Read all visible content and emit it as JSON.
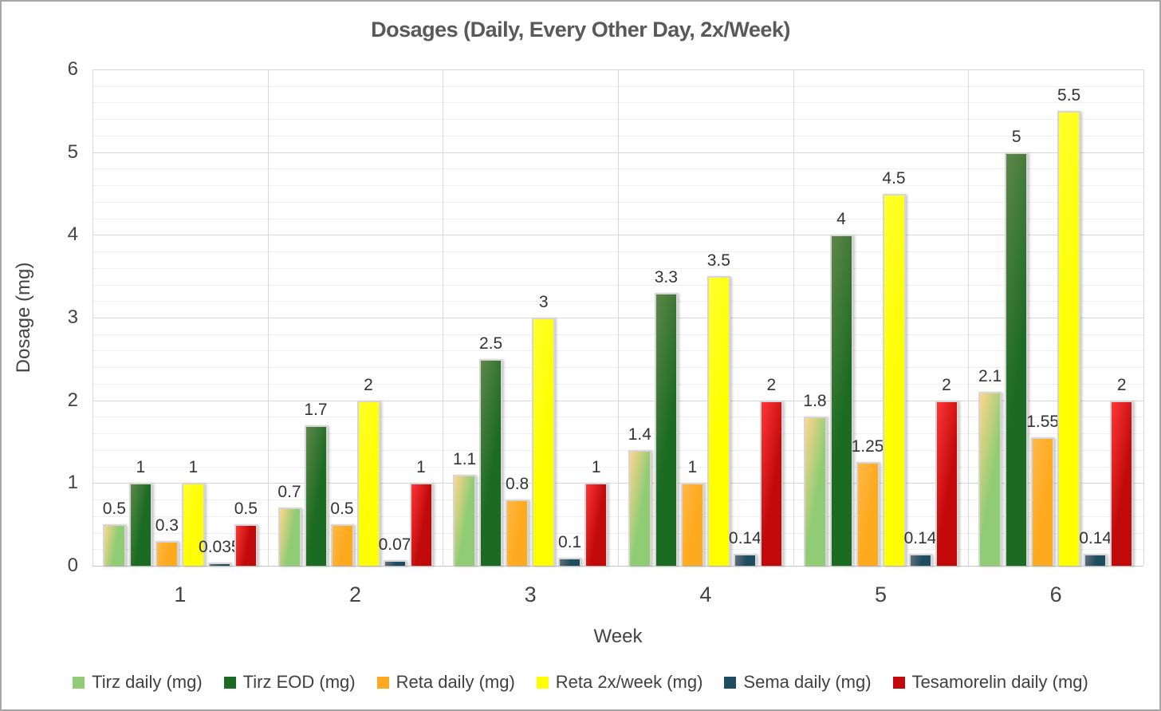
{
  "chart_data": {
    "type": "bar",
    "title": "Dosages (Daily, Every Other Day, 2x/Week)",
    "xlabel": "Week",
    "ylabel": "Dosage (mg)",
    "ylim": [
      0,
      6
    ],
    "ytick_step": 1,
    "minor_gridline_step": 0.2,
    "grid": true,
    "legend_position": "bottom",
    "yticks": [
      "0",
      "1",
      "2",
      "3",
      "4",
      "5",
      "6"
    ],
    "categories": [
      "1",
      "2",
      "3",
      "4",
      "5",
      "6"
    ],
    "series": [
      {
        "name": "Tirz daily (mg)",
        "color": "#8FCC74",
        "values": [
          0.5,
          0.7,
          1.1,
          1.4,
          1.8,
          2.1
        ],
        "labels": [
          "0.5",
          "0.7",
          "1.1",
          "1.4",
          "1.8",
          "2.1"
        ]
      },
      {
        "name": "Tirz EOD (mg)",
        "color": "#1B6B23",
        "values": [
          1,
          1.7,
          2.5,
          3.3,
          4,
          5
        ],
        "labels": [
          "1",
          "1.7",
          "2.5",
          "3.3",
          "4",
          "5"
        ]
      },
      {
        "name": "Reta daily (mg)",
        "color": "#FFA91E",
        "values": [
          0.3,
          0.5,
          0.8,
          1,
          1.25,
          1.55
        ],
        "labels": [
          "0.3",
          "0.5",
          "0.8",
          "1",
          "1.25",
          "1.55"
        ]
      },
      {
        "name": "Reta 2x/week (mg)",
        "color": "#FFFF00",
        "values": [
          1,
          2,
          3,
          3.5,
          4.5,
          5.5
        ],
        "labels": [
          "1",
          "2",
          "3",
          "3.5",
          "4.5",
          "5.5"
        ]
      },
      {
        "name": "Sema daily (mg)",
        "color": "#1D4E60",
        "values": [
          0.035,
          0.07,
          0.1,
          0.14,
          0.14,
          0.14
        ],
        "labels": [
          "0.035",
          "0.07",
          "0.1",
          "0.14",
          "0.14",
          "0.14"
        ]
      },
      {
        "name": "Tesamorelin daily (mg)",
        "color": "#C20A0A",
        "values": [
          0.5,
          1,
          1,
          2,
          2,
          2
        ],
        "labels": [
          "0.5",
          "1",
          "1",
          "2",
          "2",
          "2"
        ]
      }
    ]
  }
}
